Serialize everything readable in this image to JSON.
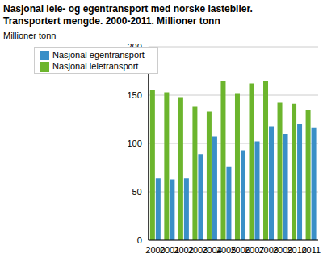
{
  "chart_data": {
    "type": "bar",
    "title": "Nasjonal leie- og egentransport med norske lastebiler. Transportert mengde. 2000-2011. Millioner tonn",
    "y_label": "Millioner tonn",
    "categories": [
      "2000",
      "2001",
      "2002",
      "2003",
      "2004",
      "2005",
      "2006",
      "2007",
      "2008",
      "2009",
      "2010",
      "2011"
    ],
    "series": [
      {
        "name": "Nasjonal leietransport",
        "color": "#6cb52d",
        "values": [
          155,
          153,
          148,
          138,
          133,
          165,
          152,
          162,
          165,
          142,
          141,
          135
        ]
      },
      {
        "name": "Nasjonal egentransport",
        "color": "#3a8fc7",
        "values": [
          64,
          63,
          64,
          89,
          107,
          76,
          93,
          102,
          118,
          110,
          120,
          116
        ]
      }
    ],
    "ylim": [
      0,
      200
    ],
    "yticks": [
      0,
      50,
      100,
      150,
      200
    ],
    "grid": true,
    "legend": "top-left"
  }
}
